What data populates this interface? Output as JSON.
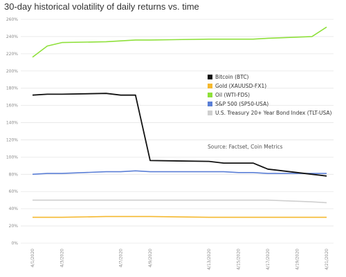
{
  "chart_data": {
    "type": "line",
    "title": "30-day historical volatility of daily returns vs. time",
    "xlabel": "",
    "ylabel": "",
    "ylim": [
      0,
      260
    ],
    "y_ticks": [
      "0%",
      "20%",
      "40%",
      "60%",
      "80%",
      "100%",
      "120%",
      "140%",
      "160%",
      "180%",
      "200%",
      "220%",
      "240%",
      "260%"
    ],
    "x": [
      "4/1/2020",
      "4/2/2020",
      "4/3/2020",
      "4/6/2020",
      "4/7/2020",
      "4/8/2020",
      "4/9/2020",
      "4/13/2020",
      "4/14/2020",
      "4/15/2020",
      "4/16/2020",
      "4/17/2020",
      "4/20/2020",
      "4/21/2020"
    ],
    "x_tick_labels": [
      "4/1/2020",
      "4/3/2020",
      "4/7/2020",
      "4/9/2020",
      "4/13/2020",
      "4/15/2020",
      "4/17/2020",
      "4/19/2020",
      "4/21/2020"
    ],
    "grid": true,
    "legend_position": "center-right",
    "annotation": "Source: Factset, Coin Metrics",
    "series": [
      {
        "name": "Bitcoin (BTC)",
        "color": "#111111",
        "values": [
          172,
          173,
          173,
          174,
          172,
          172,
          96,
          95,
          93,
          93,
          93,
          86,
          80,
          78
        ]
      },
      {
        "name": "Gold (XAUUSD-FX1)",
        "color": "#f5b82e",
        "values": [
          30,
          30,
          30,
          31,
          31,
          31,
          31,
          30,
          30,
          30,
          30,
          30,
          30,
          30
        ]
      },
      {
        "name": "Oil (WTI-FDS)",
        "color": "#8ee03a",
        "values": [
          216,
          229,
          233,
          234,
          235,
          236,
          236,
          237,
          237,
          237,
          237,
          238,
          240,
          251
        ]
      },
      {
        "name": "S&P 500 (SP50-USA)",
        "color": "#5b7fd6",
        "values": [
          80,
          81,
          81,
          83,
          83,
          84,
          83,
          83,
          83,
          82,
          82,
          81,
          81,
          81
        ]
      },
      {
        "name": "U.S. Treasury 20+ Year Bond Index (TLT-USA)",
        "color": "#cfcfcf",
        "values": [
          50,
          50,
          50,
          50,
          50,
          50,
          50,
          50,
          50,
          50,
          50,
          50,
          48,
          47
        ]
      }
    ]
  }
}
